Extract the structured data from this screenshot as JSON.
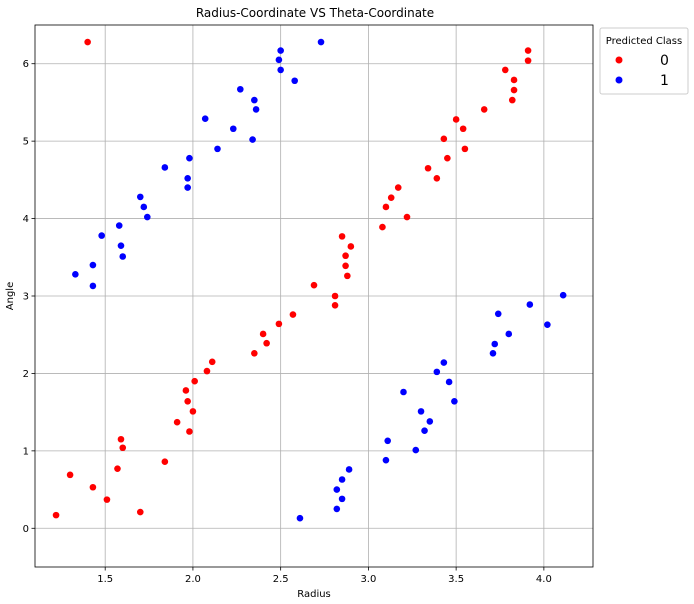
{
  "chart_data": {
    "type": "scatter",
    "title": "Radius-Coordinate VS Theta-Coordinate",
    "xlabel": "Radius",
    "ylabel": "Angle",
    "xlim": [
      1.1,
      4.28
    ],
    "ylim": [
      -0.5,
      6.5
    ],
    "xticks": [
      "1.5",
      "2.0",
      "2.5",
      "3.0",
      "3.5",
      "4.0"
    ],
    "xtick_values": [
      1.5,
      2.0,
      2.5,
      3.0,
      3.5,
      4.0
    ],
    "yticks": [
      "0",
      "1",
      "2",
      "3",
      "4",
      "5",
      "6"
    ],
    "ytick_values": [
      0,
      1,
      2,
      3,
      4,
      5,
      6
    ],
    "grid": true,
    "legend": {
      "title": "Predicted Class",
      "placement": "upper-right-outside"
    },
    "series": [
      {
        "name": "0",
        "color": "#ff0000",
        "points": [
          [
            1.4,
            6.28
          ],
          [
            1.22,
            0.17
          ],
          [
            1.3,
            0.69
          ],
          [
            1.43,
            0.53
          ],
          [
            1.51,
            0.37
          ],
          [
            1.57,
            0.77
          ],
          [
            1.59,
            1.15
          ],
          [
            1.6,
            1.04
          ],
          [
            1.7,
            0.21
          ],
          [
            1.84,
            0.86
          ],
          [
            1.91,
            1.37
          ],
          [
            1.96,
            1.78
          ],
          [
            1.97,
            1.64
          ],
          [
            1.98,
            1.25
          ],
          [
            2.0,
            1.51
          ],
          [
            2.01,
            1.9
          ],
          [
            2.08,
            2.03
          ],
          [
            2.11,
            2.15
          ],
          [
            2.35,
            2.26
          ],
          [
            2.4,
            2.51
          ],
          [
            2.42,
            2.39
          ],
          [
            2.49,
            2.64
          ],
          [
            2.57,
            2.76
          ],
          [
            2.69,
            3.14
          ],
          [
            2.81,
            2.88
          ],
          [
            2.81,
            3.0
          ],
          [
            2.85,
            3.77
          ],
          [
            2.87,
            3.52
          ],
          [
            2.87,
            3.39
          ],
          [
            2.88,
            3.26
          ],
          [
            2.9,
            3.64
          ],
          [
            3.08,
            3.89
          ],
          [
            3.1,
            4.15
          ],
          [
            3.13,
            4.27
          ],
          [
            3.17,
            4.4
          ],
          [
            3.22,
            4.02
          ],
          [
            3.34,
            4.65
          ],
          [
            3.39,
            4.52
          ],
          [
            3.43,
            5.03
          ],
          [
            3.45,
            4.78
          ],
          [
            3.5,
            5.28
          ],
          [
            3.54,
            5.16
          ],
          [
            3.55,
            4.9
          ],
          [
            3.66,
            5.41
          ],
          [
            3.78,
            5.92
          ],
          [
            3.82,
            5.53
          ],
          [
            3.83,
            5.79
          ],
          [
            3.83,
            5.66
          ],
          [
            3.91,
            6.17
          ],
          [
            3.91,
            6.04
          ]
        ]
      },
      {
        "name": "1",
        "color": "#0000ff",
        "points": [
          [
            2.73,
            6.28
          ],
          [
            2.5,
            6.17
          ],
          [
            2.49,
            6.05
          ],
          [
            2.5,
            5.92
          ],
          [
            2.58,
            5.78
          ],
          [
            2.27,
            5.67
          ],
          [
            2.35,
            5.53
          ],
          [
            2.36,
            5.41
          ],
          [
            2.07,
            5.29
          ],
          [
            2.23,
            5.16
          ],
          [
            2.34,
            5.02
          ],
          [
            2.14,
            4.9
          ],
          [
            1.98,
            4.78
          ],
          [
            1.84,
            4.66
          ],
          [
            1.97,
            4.52
          ],
          [
            1.97,
            4.4
          ],
          [
            1.7,
            4.28
          ],
          [
            1.72,
            4.15
          ],
          [
            1.74,
            4.02
          ],
          [
            1.58,
            3.91
          ],
          [
            1.48,
            3.78
          ],
          [
            1.59,
            3.65
          ],
          [
            1.6,
            3.51
          ],
          [
            1.43,
            3.4
          ],
          [
            1.33,
            3.28
          ],
          [
            1.43,
            3.13
          ],
          [
            4.11,
            3.01
          ],
          [
            3.92,
            2.89
          ],
          [
            4.02,
            2.63
          ],
          [
            3.74,
            2.77
          ],
          [
            3.8,
            2.51
          ],
          [
            3.72,
            2.38
          ],
          [
            3.71,
            2.26
          ],
          [
            3.43,
            2.14
          ],
          [
            3.39,
            2.02
          ],
          [
            3.46,
            1.89
          ],
          [
            3.2,
            1.76
          ],
          [
            3.49,
            1.64
          ],
          [
            3.3,
            1.51
          ],
          [
            3.35,
            1.38
          ],
          [
            3.32,
            1.26
          ],
          [
            3.11,
            1.13
          ],
          [
            3.27,
            1.01
          ],
          [
            3.1,
            0.88
          ],
          [
            2.89,
            0.76
          ],
          [
            2.85,
            0.63
          ],
          [
            2.82,
            0.5
          ],
          [
            2.85,
            0.38
          ],
          [
            2.82,
            0.25
          ],
          [
            2.61,
            0.13
          ]
        ]
      }
    ]
  }
}
